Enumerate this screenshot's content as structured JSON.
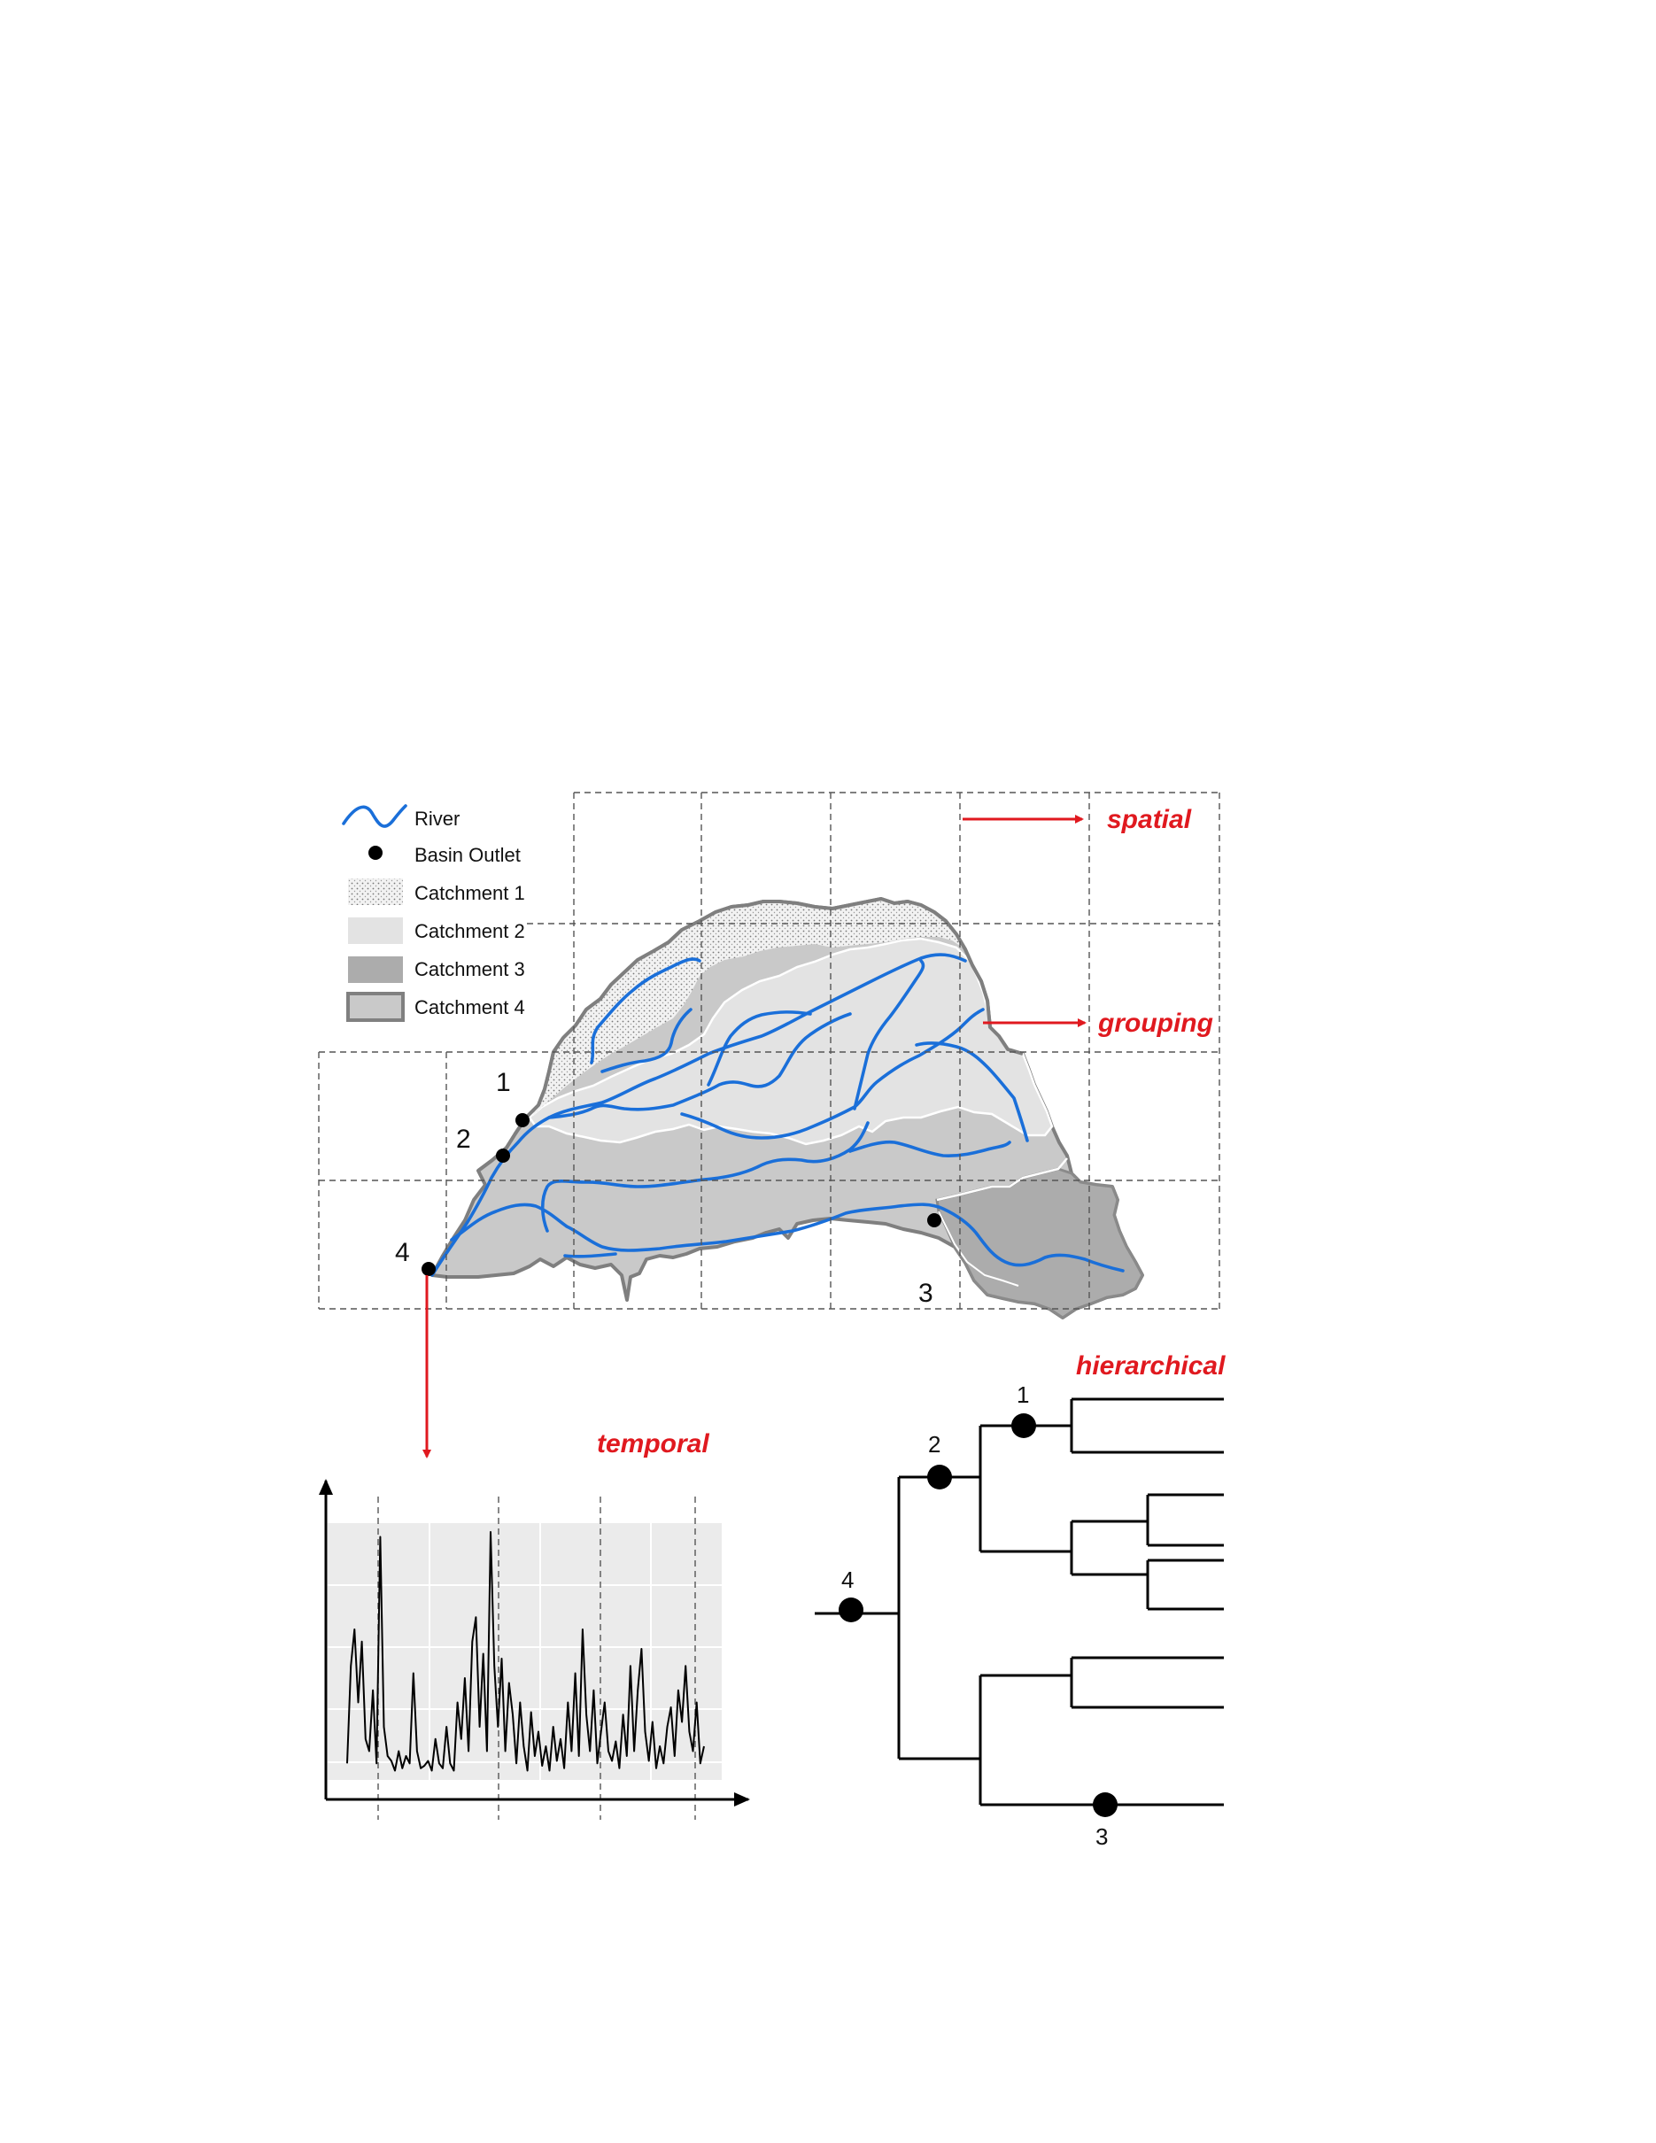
{
  "legend": {
    "river": "River",
    "outlet": "Basin Outlet",
    "c1": "Catchment 1",
    "c2": "Catchment 2",
    "c3": "Catchment 3",
    "c4": "Catchment 4"
  },
  "labels": {
    "spatial": "spatial",
    "grouping": "grouping",
    "temporal": "temporal",
    "hierarchical": "hierarchical"
  },
  "outlets": [
    "1",
    "2",
    "3",
    "4"
  ],
  "tree_nodes": [
    "1",
    "2",
    "3",
    "4"
  ],
  "hydrograph": [
    0.05,
    0.45,
    0.6,
    0.3,
    0.55,
    0.15,
    0.1,
    0.35,
    0.05,
    0.98,
    0.2,
    0.08,
    0.06,
    0.02,
    0.1,
    0.03,
    0.08,
    0.05,
    0.42,
    0.1,
    0.03,
    0.04,
    0.06,
    0.02,
    0.15,
    0.05,
    0.03,
    0.2,
    0.05,
    0.02,
    0.3,
    0.15,
    0.4,
    0.1,
    0.55,
    0.65,
    0.2,
    0.5,
    0.1,
    1.0,
    0.45,
    0.2,
    0.48,
    0.1,
    0.38,
    0.25,
    0.05,
    0.3,
    0.12,
    0.02,
    0.26,
    0.08,
    0.18,
    0.04,
    0.12,
    0.02,
    0.2,
    0.06,
    0.15,
    0.03,
    0.3,
    0.1,
    0.42,
    0.08,
    0.6,
    0.25,
    0.1,
    0.35,
    0.05,
    0.18,
    0.3,
    0.1,
    0.06,
    0.14,
    0.03,
    0.25,
    0.08,
    0.45,
    0.1,
    0.35,
    0.52,
    0.18,
    0.06,
    0.22,
    0.03,
    0.12,
    0.05,
    0.2,
    0.28,
    0.08,
    0.35,
    0.22,
    0.45,
    0.18,
    0.1,
    0.3,
    0.05,
    0.12
  ]
}
